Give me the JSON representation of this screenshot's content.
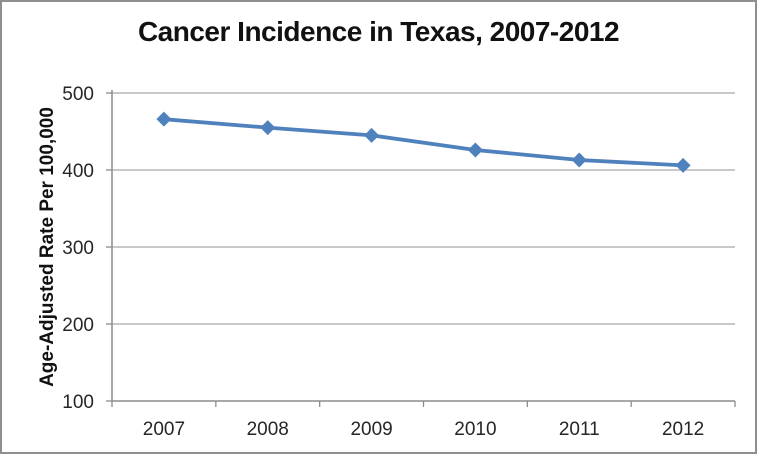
{
  "window": {
    "background_color": "#ffffff",
    "border_color": "#8f8f8f"
  },
  "chart_data": {
    "type": "line",
    "title": "Cancer Incidence in Texas, 2007-2012",
    "xlabel": "",
    "ylabel": "Age-Adjusted Rate Per 100,000",
    "categories": [
      "2007",
      "2008",
      "2009",
      "2010",
      "2011",
      "2012"
    ],
    "values": [
      466,
      455,
      445,
      426,
      413,
      406
    ],
    "ylim": [
      100,
      500
    ],
    "yticks": [
      100,
      200,
      300,
      400,
      500
    ],
    "grid": true,
    "legend": false,
    "marker": "diamond",
    "colors": {
      "line": "#4F81BD",
      "marker": "#4F81BD",
      "gridline": "#A6A6A6",
      "axis": "#8C8C8C",
      "tick_label": "#262626",
      "title": "#111111"
    }
  }
}
